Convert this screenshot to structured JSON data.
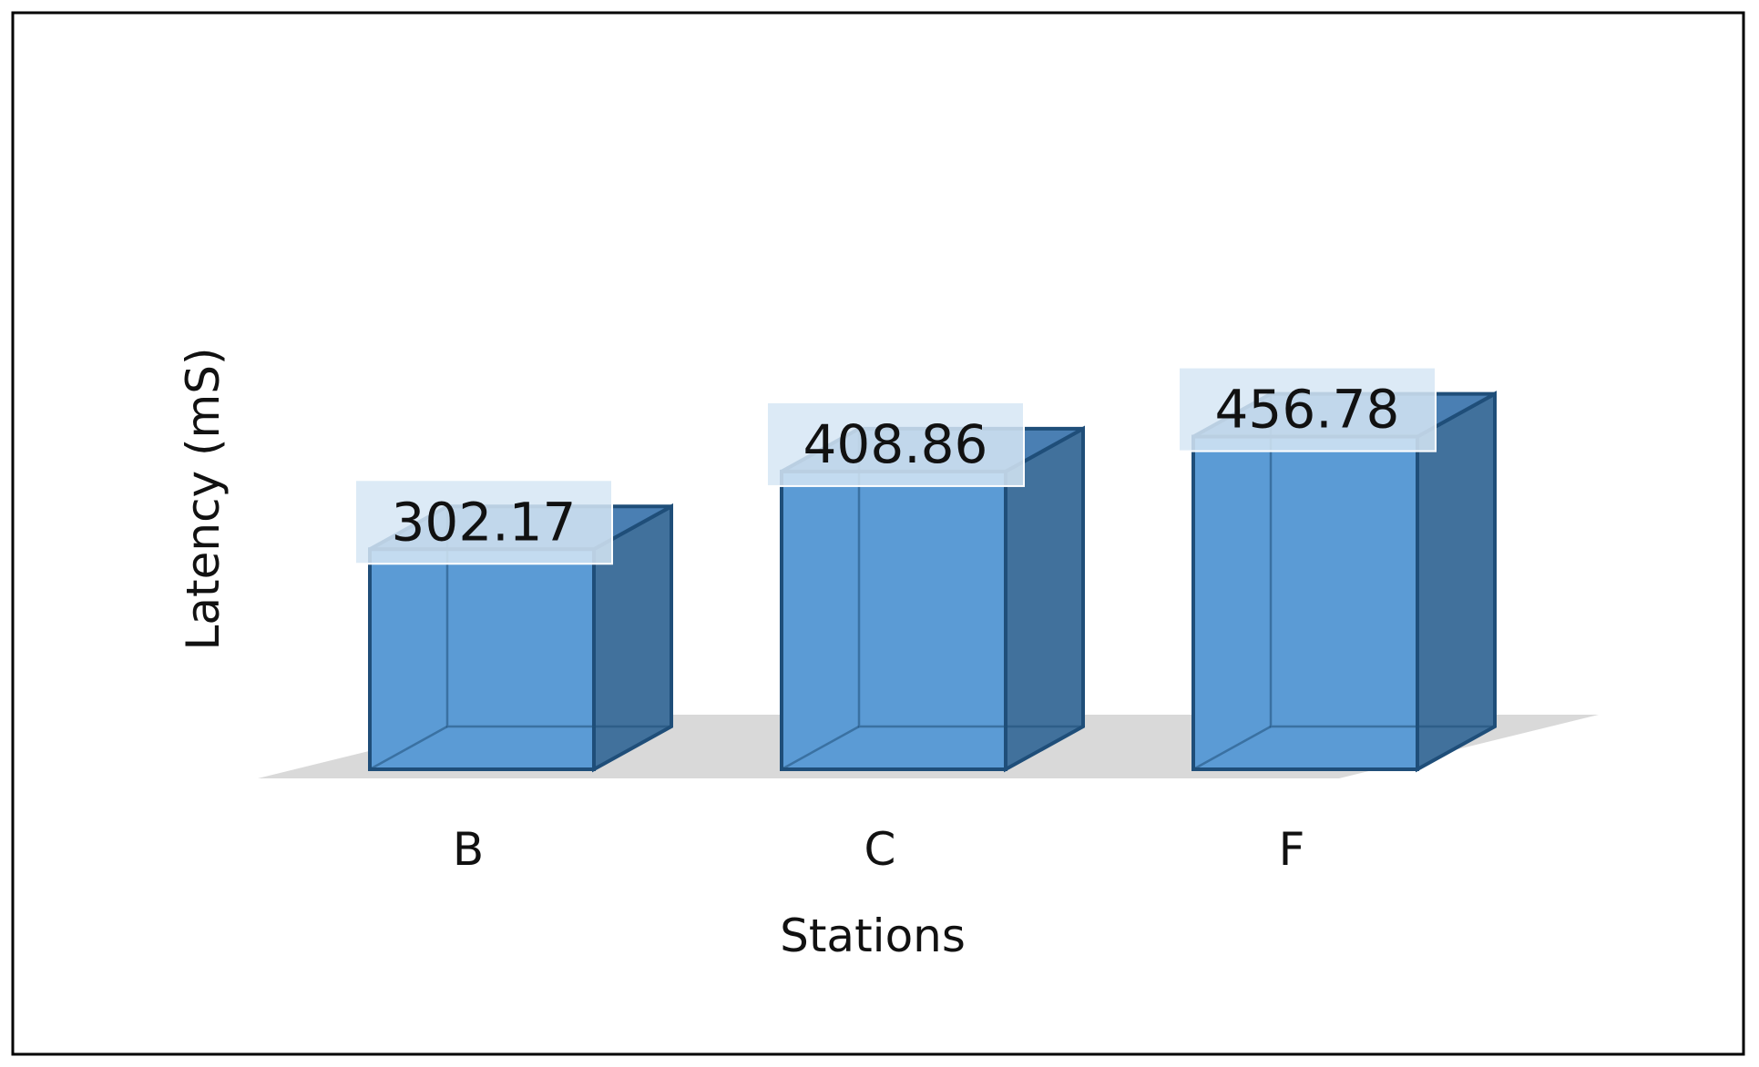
{
  "chart_data": {
    "type": "bar",
    "style": "3d-column",
    "categories": [
      "B",
      "C",
      "F"
    ],
    "values": [
      302.17,
      408.86,
      456.78
    ],
    "value_labels": [
      "302.17",
      "408.86",
      "456.78"
    ],
    "title": "",
    "xlabel": "Stations",
    "ylabel": "Latency (mS)",
    "ylim": [
      0,
      460
    ],
    "grid": false,
    "legend": "none",
    "colors": {
      "bar_front": "#5b9bd5",
      "bar_top": "#4a7fb3",
      "bar_side": "#41719c",
      "bar_edge": "#1f4e79",
      "floor": "#d9d9d9",
      "label_box": "#d6e6f5"
    }
  }
}
